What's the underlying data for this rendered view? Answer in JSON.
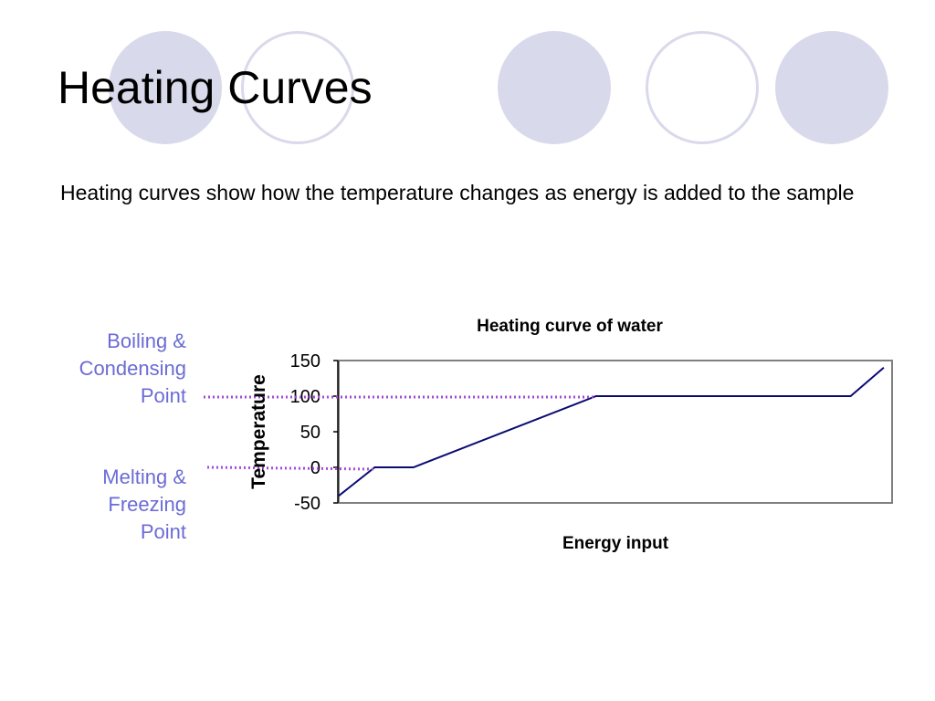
{
  "slide": {
    "title": "Heating Curves",
    "subtitle": "Heating curves show how the temperature changes as energy is added to the sample"
  },
  "annotations": {
    "boiling": {
      "lines": [
        "Boiling &",
        "Condensing",
        "Point"
      ],
      "temperature": 100
    },
    "melting": {
      "lines": [
        "Melting &",
        "Freezing",
        "Point"
      ],
      "temperature": 0
    },
    "label_color": "#6b6bd6",
    "marker_color": "#a64ad6"
  },
  "colors": {
    "circle_fill": "#d9d9ec",
    "line": "#0a0a73",
    "plot_border": "#808080"
  },
  "chart_data": {
    "type": "line",
    "title": "Heating curve of water",
    "xlabel": "Energy input",
    "ylabel": "Temperature",
    "ylim": [
      -50,
      150
    ],
    "yticks": [
      -50,
      0,
      50,
      100,
      150
    ],
    "ytick_labels": [
      "-50",
      "0",
      "50",
      "100",
      "150"
    ],
    "xlim": [
      0,
      100
    ],
    "grid": false,
    "legend": "none",
    "series": [
      {
        "x": [
          0,
          6.5,
          13.5,
          46.5,
          92.5,
          98.5
        ],
        "y": [
          -40,
          0,
          0,
          100,
          100,
          140
        ]
      }
    ]
  }
}
